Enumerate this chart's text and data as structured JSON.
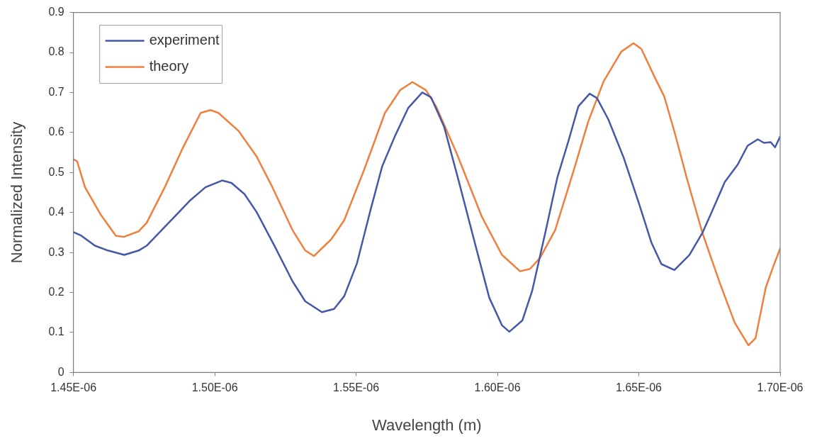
{
  "chart_data": {
    "type": "line",
    "xlabel": "Wavelength (m)",
    "ylabel": "Normalized Intensity",
    "xlim": [
      1.45e-06,
      1.7e-06
    ],
    "xticks": [
      {
        "value": 1.45e-06,
        "label": "1.45E-06"
      },
      {
        "value": 1.5e-06,
        "label": "1.50E-06"
      },
      {
        "value": 1.55e-06,
        "label": "1.55E-06"
      },
      {
        "value": 1.6e-06,
        "label": "1.60E-06"
      },
      {
        "value": 1.65e-06,
        "label": "1.65E-06"
      },
      {
        "value": 1.7e-06,
        "label": "1.70E-06"
      }
    ],
    "ylim": [
      0,
      0.9
    ],
    "yticks": [
      0,
      0.1,
      0.2,
      0.3,
      0.4,
      0.5,
      0.6,
      0.7,
      0.8,
      0.9
    ],
    "grid": false,
    "legend": "top left",
    "marker": "none",
    "line_style": "solid",
    "series": [
      {
        "name": "experiment",
        "color": "#4558a8",
        "x": [
          1.45e-06,
          1.4528e-06,
          1.4576e-06,
          1.4622e-06,
          1.468e-06,
          1.4731e-06,
          1.4759e-06,
          1.483e-06,
          1.4914e-06,
          1.4967e-06,
          1.5026e-06,
          1.5059e-06,
          1.5105e-06,
          1.5148e-06,
          1.5211e-06,
          1.5275e-06,
          1.532e-06,
          1.5379e-06,
          1.5422e-06,
          1.5458e-06,
          1.5503e-06,
          1.5549e-06,
          1.5592e-06,
          1.5638e-06,
          1.5684e-06,
          1.5734e-06,
          1.5765e-06,
          1.5811e-06,
          1.5864e-06,
          1.5917e-06,
          1.5971e-06,
          1.6016e-06,
          1.6042e-06,
          1.6088e-06,
          1.6123e-06,
          1.6169e-06,
          1.6212e-06,
          1.625e-06,
          1.6286e-06,
          1.6326e-06,
          1.6352e-06,
          1.6392e-06,
          1.6446e-06,
          1.6499e-06,
          1.6545e-06,
          1.658e-06,
          1.6626e-06,
          1.6679e-06,
          1.6725e-06,
          1.6761e-06,
          1.6804e-06,
          1.685e-06,
          1.6885e-06,
          1.6921e-06,
          1.6943e-06,
          1.6966e-06,
          1.6982e-06,
          1.7e-06
        ],
        "values": [
          0.351,
          0.342,
          0.317,
          0.305,
          0.294,
          0.305,
          0.317,
          0.369,
          0.431,
          0.463,
          0.48,
          0.474,
          0.446,
          0.401,
          0.317,
          0.228,
          0.178,
          0.151,
          0.159,
          0.191,
          0.273,
          0.401,
          0.515,
          0.592,
          0.661,
          0.7,
          0.688,
          0.615,
          0.476,
          0.332,
          0.187,
          0.118,
          0.102,
          0.13,
          0.205,
          0.349,
          0.488,
          0.576,
          0.665,
          0.697,
          0.686,
          0.633,
          0.538,
          0.426,
          0.324,
          0.271,
          0.256,
          0.294,
          0.349,
          0.406,
          0.476,
          0.52,
          0.567,
          0.583,
          0.574,
          0.576,
          0.563,
          0.59
        ]
      },
      {
        "name": "theory",
        "color": "#f07f3c",
        "x": [
          1.45e-06,
          1.4513e-06,
          1.4541e-06,
          1.4597e-06,
          1.465e-06,
          1.4678e-06,
          1.4731e-06,
          1.4759e-06,
          1.4823e-06,
          1.4886e-06,
          1.495e-06,
          1.4985e-06,
          1.5013e-06,
          1.5084e-06,
          1.5148e-06,
          1.5204e-06,
          1.5275e-06,
          1.532e-06,
          1.5351e-06,
          1.5412e-06,
          1.5458e-06,
          1.5529e-06,
          1.5602e-06,
          1.5656e-06,
          1.5699e-06,
          1.5747e-06,
          1.5783e-06,
          1.5854e-06,
          1.5945e-06,
          1.6016e-06,
          1.608e-06,
          1.6115e-06,
          1.6151e-06,
          1.6204e-06,
          1.6268e-06,
          1.6321e-06,
          1.6375e-06,
          1.6438e-06,
          1.6481e-06,
          1.6509e-06,
          1.6555e-06,
          1.659e-06,
          1.6626e-06,
          1.6669e-06,
          1.6725e-06,
          1.6786e-06,
          1.6839e-06,
          1.6888e-06,
          1.6913e-06,
          1.6949e-06,
          1.6974e-06,
          1.7e-06
        ],
        "values": [
          0.533,
          0.528,
          0.463,
          0.394,
          0.342,
          0.339,
          0.353,
          0.374,
          0.463,
          0.56,
          0.649,
          0.656,
          0.649,
          0.604,
          0.54,
          0.463,
          0.356,
          0.305,
          0.291,
          0.333,
          0.381,
          0.508,
          0.649,
          0.706,
          0.726,
          0.706,
          0.665,
          0.551,
          0.389,
          0.294,
          0.253,
          0.259,
          0.287,
          0.356,
          0.501,
          0.627,
          0.727,
          0.802,
          0.823,
          0.809,
          0.74,
          0.69,
          0.602,
          0.488,
          0.349,
          0.225,
          0.125,
          0.068,
          0.086,
          0.212,
          0.262,
          0.31
        ]
      }
    ]
  }
}
